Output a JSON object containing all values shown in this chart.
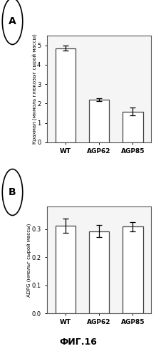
{
  "panel_A": {
    "categories": [
      "WT",
      "AGP62",
      "AGP85"
    ],
    "values": [
      4.85,
      2.2,
      1.58
    ],
    "errors": [
      0.13,
      0.09,
      0.2
    ],
    "ylabel": "Крахмал (мкмоль глюкозыг сырой массы)",
    "ylim": [
      0,
      5.5
    ],
    "yticks": [
      0,
      1,
      2,
      3,
      4,
      5
    ],
    "label": "A"
  },
  "panel_B": {
    "categories": [
      "WT",
      "AGP62",
      "AGP85"
    ],
    "values": [
      0.312,
      0.292,
      0.308
    ],
    "errors": [
      0.025,
      0.022,
      0.016
    ],
    "ylabel": "ADPG (нмольг сырой массы)",
    "ylim": [
      0.0,
      0.38
    ],
    "yticks": [
      0.0,
      0.1,
      0.2,
      0.3
    ],
    "label": "B"
  },
  "caption": "ФИГ.16",
  "bar_color": "white",
  "bar_edgecolor": "#444444",
  "bar_width": 0.6,
  "plot_bg": "#f5f5f5",
  "fig_bg": "#ffffff"
}
